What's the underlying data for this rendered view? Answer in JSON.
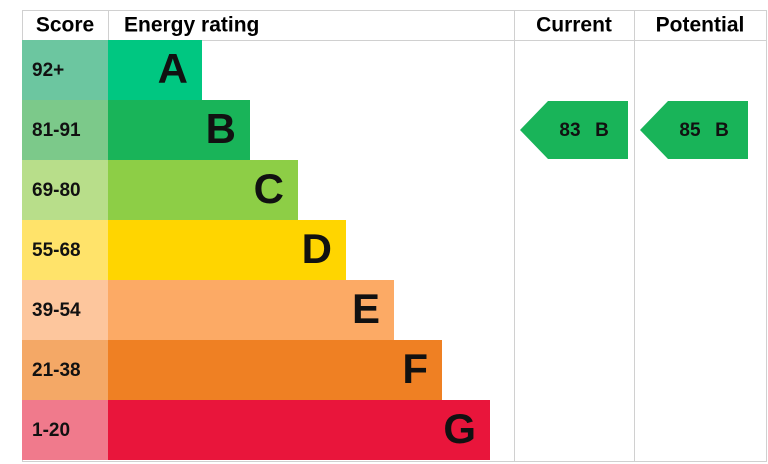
{
  "chart_data": {
    "type": "energy-rating",
    "headers": {
      "score": "Score",
      "rating": "Energy rating",
      "current": "Current",
      "potential": "Potential"
    },
    "bands": [
      {
        "score": "92+",
        "letter": "A",
        "color": "#00c781",
        "score_color": "#6cc6a0"
      },
      {
        "score": "81-91",
        "letter": "B",
        "color": "#19b459",
        "score_color": "#7cc98a"
      },
      {
        "score": "69-80",
        "letter": "C",
        "color": "#8dce46",
        "score_color": "#b8de8a"
      },
      {
        "score": "55-68",
        "letter": "D",
        "color": "#ffd500",
        "score_color": "#ffe36a"
      },
      {
        "score": "39-54",
        "letter": "E",
        "color": "#fcaa65",
        "score_color": "#fdc69d"
      },
      {
        "score": "21-38",
        "letter": "F",
        "color": "#ef8023",
        "score_color": "#f4a866"
      },
      {
        "score": "1-20",
        "letter": "G",
        "color": "#e9153b",
        "score_color": "#f07a8c"
      }
    ],
    "current": {
      "value": 83,
      "rating": "B"
    },
    "potential": {
      "value": 85,
      "rating": "B"
    }
  }
}
